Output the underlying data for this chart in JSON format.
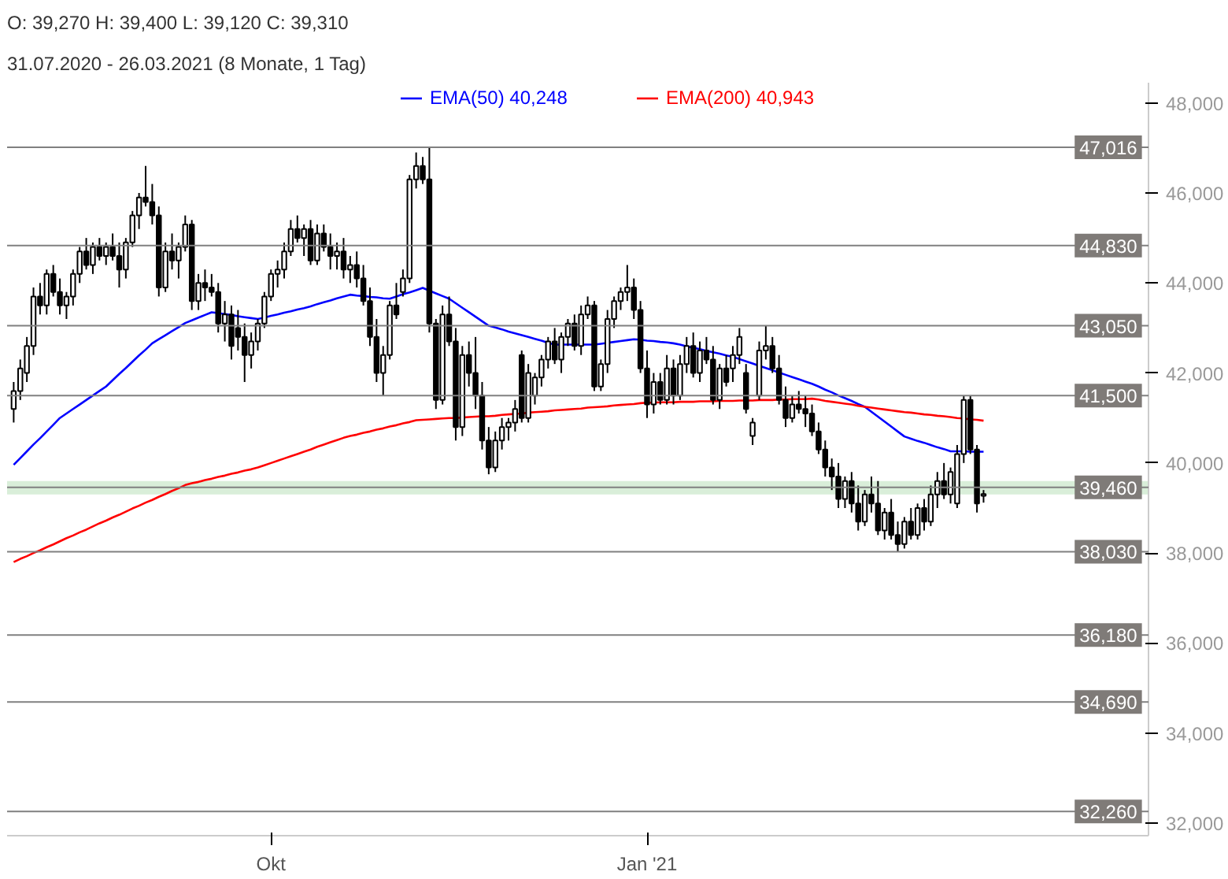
{
  "chart_data": {
    "type": "candlestick",
    "title": "O: 39,270  H: 39,400  L: 39,120  C: 39,310",
    "subtitle": "31.07.2020 - 26.03.2021   (8 Monate, 1 Tag)",
    "categories": [
      null,
      null,
      null,
      null,
      null,
      null,
      null,
      null,
      null,
      null,
      null,
      null,
      null,
      null,
      null,
      null,
      null,
      null,
      null,
      null,
      null,
      null,
      null,
      null,
      null,
      null,
      null,
      null,
      null,
      null,
      null,
      null,
      null,
      null,
      null,
      null,
      null,
      null,
      null,
      "Okt",
      null,
      null,
      null,
      null,
      null,
      null,
      null,
      null,
      null,
      null,
      null,
      null,
      null,
      null,
      null,
      null,
      null,
      null,
      null,
      null,
      null,
      null,
      null,
      null,
      null,
      null,
      null,
      null,
      null,
      null,
      null,
      null,
      null,
      null,
      null,
      null,
      null,
      null,
      null,
      null,
      null,
      null,
      null,
      null,
      null,
      null,
      null,
      null,
      null,
      null,
      null,
      null,
      null,
      null,
      null,
      null,
      "Jan '21",
      null,
      null,
      null,
      null,
      null,
      null,
      null,
      null,
      null,
      null,
      null,
      null,
      null,
      null,
      null,
      null,
      null,
      null,
      null,
      null,
      null,
      null,
      null,
      null,
      null,
      null,
      null,
      null,
      null,
      null,
      null,
      null,
      null,
      null,
      null,
      null,
      null,
      null,
      null,
      null,
      null,
      null,
      null,
      null,
      null,
      null,
      null,
      null,
      null,
      null,
      null
    ],
    "ohlc": [
      [
        41200,
        41800,
        40900,
        41600
      ],
      [
        41600,
        42300,
        41400,
        42100
      ],
      [
        42000,
        42800,
        41800,
        42600
      ],
      [
        42600,
        43900,
        42400,
        43700
      ],
      [
        43700,
        44000,
        43300,
        43500
      ],
      [
        43500,
        44300,
        43300,
        44200
      ],
      [
        44200,
        44400,
        43700,
        43800
      ],
      [
        43800,
        44100,
        43300,
        43500
      ],
      [
        43500,
        43800,
        43200,
        43700
      ],
      [
        43700,
        44300,
        43500,
        44200
      ],
      [
        44200,
        44800,
        44000,
        44700
      ],
      [
        44700,
        45000,
        44300,
        44400
      ],
      [
        44400,
        44900,
        44200,
        44800
      ],
      [
        44800,
        45000,
        44500,
        44600
      ],
      [
        44600,
        44900,
        44400,
        44800
      ],
      [
        44800,
        45100,
        44500,
        44600
      ],
      [
        44600,
        44900,
        43900,
        44300
      ],
      [
        44300,
        45000,
        44100,
        44900
      ],
      [
        44900,
        45600,
        44800,
        45500
      ],
      [
        45500,
        46000,
        45200,
        45900
      ],
      [
        45900,
        46600,
        45700,
        45800
      ],
      [
        45800,
        46200,
        45300,
        45500
      ],
      [
        45500,
        45700,
        43700,
        43900
      ],
      [
        43900,
        44900,
        43800,
        44700
      ],
      [
        44700,
        45100,
        44300,
        44500
      ],
      [
        44500,
        44900,
        44100,
        44800
      ],
      [
        44800,
        45500,
        44700,
        45300
      ],
      [
        45300,
        45400,
        43400,
        43600
      ],
      [
        43600,
        44200,
        43400,
        44000
      ],
      [
        44000,
        44300,
        43600,
        43900
      ],
      [
        43900,
        44200,
        43700,
        43800
      ],
      [
        43800,
        44000,
        42900,
        43100
      ],
      [
        43100,
        43600,
        42700,
        43300
      ],
      [
        43300,
        43500,
        42300,
        42600
      ],
      [
        43000,
        43400,
        42500,
        42800
      ],
      [
        42800,
        43100,
        41800,
        42400
      ],
      [
        42400,
        42900,
        42100,
        42700
      ],
      [
        42700,
        43200,
        42500,
        43100
      ],
      [
        43100,
        43800,
        43000,
        43700
      ],
      [
        43700,
        44300,
        43600,
        44200
      ],
      [
        44200,
        44500,
        43900,
        44300
      ],
      [
        44300,
        44900,
        44100,
        44700
      ],
      [
        44700,
        45400,
        44600,
        45200
      ],
      [
        45200,
        45500,
        44900,
        45000
      ],
      [
        45000,
        45300,
        44600,
        45200
      ],
      [
        45200,
        45400,
        44400,
        44500
      ],
      [
        44500,
        45300,
        44400,
        45100
      ],
      [
        45100,
        45300,
        44700,
        44800
      ],
      [
        44800,
        45100,
        44300,
        44600
      ],
      [
        44600,
        44900,
        44300,
        44700
      ],
      [
        44700,
        45000,
        44100,
        44300
      ],
      [
        44300,
        44600,
        44000,
        44400
      ],
      [
        44400,
        44700,
        43900,
        44100
      ],
      [
        44100,
        44400,
        43500,
        43600
      ],
      [
        43600,
        43900,
        42600,
        42800
      ],
      [
        42800,
        43200,
        41800,
        42000
      ],
      [
        42000,
        42600,
        41500,
        42400
      ],
      [
        42400,
        43600,
        42300,
        43500
      ],
      [
        43500,
        44000,
        43200,
        43300
      ],
      [
        43800,
        44300,
        43700,
        44100
      ],
      [
        44100,
        46400,
        44000,
        46300
      ],
      [
        46300,
        46900,
        46100,
        46600
      ],
      [
        46600,
        46800,
        46200,
        46300
      ],
      [
        46300,
        47016,
        42900,
        43100
      ],
      [
        43100,
        43200,
        41200,
        41400
      ],
      [
        41400,
        43500,
        41300,
        43300
      ],
      [
        43300,
        43700,
        42600,
        42700
      ],
      [
        42700,
        43000,
        40500,
        40800
      ],
      [
        40800,
        42600,
        40600,
        42400
      ],
      [
        42400,
        42700,
        41700,
        42000
      ],
      [
        42000,
        42800,
        41200,
        41500
      ],
      [
        41500,
        41800,
        40300,
        40500
      ],
      [
        40500,
        40800,
        39750,
        39900
      ],
      [
        39900,
        40700,
        39800,
        40500
      ],
      [
        40500,
        41000,
        40300,
        40800
      ],
      [
        40800,
        41000,
        40500,
        40900
      ],
      [
        40900,
        41400,
        40700,
        41200
      ],
      [
        42400,
        42500,
        40900,
        41000
      ],
      [
        41000,
        42200,
        40900,
        42000
      ],
      [
        41500,
        42000,
        41300,
        41900
      ],
      [
        41900,
        42400,
        41700,
        42300
      ],
      [
        42300,
        42800,
        42100,
        42700
      ],
      [
        42700,
        43000,
        42200,
        42300
      ],
      [
        42300,
        42900,
        42000,
        42800
      ],
      [
        42800,
        43200,
        42600,
        43100
      ],
      [
        43100,
        43300,
        42500,
        42600
      ],
      [
        42600,
        43500,
        42400,
        43300
      ],
      [
        43300,
        43700,
        43200,
        43500
      ],
      [
        43500,
        43600,
        41600,
        41700
      ],
      [
        41700,
        42300,
        41600,
        42200
      ],
      [
        42200,
        43400,
        42000,
        43200
      ],
      [
        43200,
        43700,
        43000,
        43600
      ],
      [
        43600,
        43900,
        43400,
        43800
      ],
      [
        43800,
        44400,
        43600,
        43900
      ],
      [
        43900,
        44100,
        43200,
        43400
      ],
      [
        43400,
        43600,
        42000,
        42100
      ],
      [
        42100,
        42500,
        41000,
        41300
      ],
      [
        41300,
        42000,
        41100,
        41800
      ],
      [
        41800,
        42000,
        41300,
        41400
      ],
      [
        41400,
        42400,
        41300,
        42100
      ],
      [
        42100,
        42300,
        41300,
        41500
      ],
      [
        41500,
        42400,
        41400,
        42200
      ],
      [
        42200,
        42800,
        42000,
        42600
      ],
      [
        42600,
        42900,
        41900,
        42000
      ],
      [
        42000,
        42700,
        41800,
        42500
      ],
      [
        42500,
        42800,
        42200,
        42300
      ],
      [
        42300,
        42600,
        41300,
        41400
      ],
      [
        41400,
        42200,
        41200,
        42100
      ],
      [
        42100,
        42400,
        41700,
        41800
      ],
      [
        42100,
        42600,
        41800,
        42400
      ],
      [
        42400,
        43000,
        42200,
        42800
      ],
      [
        42000,
        42200,
        41100,
        41200
      ],
      [
        40600,
        41000,
        40400,
        40900
      ],
      [
        41500,
        42700,
        41400,
        42500
      ],
      [
        42500,
        43050,
        42300,
        42600
      ],
      [
        42600,
        42800,
        42000,
        42100
      ],
      [
        42100,
        42400,
        41300,
        41400
      ],
      [
        41400,
        41700,
        40800,
        41000
      ],
      [
        41000,
        41500,
        40900,
        41300
      ],
      [
        41300,
        41600,
        41100,
        41200
      ],
      [
        41200,
        41500,
        40800,
        41100
      ],
      [
        41100,
        41300,
        40600,
        40700
      ],
      [
        40700,
        40900,
        40200,
        40300
      ],
      [
        40300,
        40500,
        39700,
        39900
      ],
      [
        39900,
        40100,
        39400,
        39700
      ],
      [
        39700,
        40000,
        39000,
        39200
      ],
      [
        39200,
        39700,
        39000,
        39600
      ],
      [
        39600,
        39800,
        38900,
        39100
      ],
      [
        39100,
        39500,
        38500,
        38700
      ],
      [
        38700,
        39400,
        38600,
        39300
      ],
      [
        39300,
        39700,
        38900,
        39100
      ],
      [
        39100,
        39600,
        38400,
        38500
      ],
      [
        38500,
        39000,
        38300,
        38900
      ],
      [
        38900,
        39200,
        38300,
        38400
      ],
      [
        38400,
        38700,
        38030,
        38200
      ],
      [
        38200,
        38800,
        38100,
        38700
      ],
      [
        38700,
        39000,
        38300,
        38400
      ],
      [
        38400,
        39100,
        38300,
        39000
      ],
      [
        39000,
        39200,
        38500,
        38700
      ],
      [
        38700,
        39500,
        38600,
        39300
      ],
      [
        39300,
        39800,
        39000,
        39600
      ],
      [
        39600,
        40000,
        39200,
        39300
      ],
      [
        39300,
        39900,
        39100,
        39800
      ],
      [
        39100,
        40400,
        39000,
        40200
      ],
      [
        40200,
        41500,
        40000,
        41400
      ],
      [
        41400,
        41500,
        40200,
        40300
      ],
      [
        40300,
        40400,
        38900,
        39100
      ],
      [
        39270,
        39400,
        39120,
        39310
      ]
    ],
    "series": [
      {
        "type": "line",
        "name": "EMA(50) 40,248",
        "color": "#0000ff",
        "values": [
          39960,
          40110,
          40260,
          40410,
          40550,
          40700,
          40850,
          41000,
          41100,
          41200,
          41300,
          41400,
          41500,
          41600,
          41700,
          41840,
          41980,
          42110,
          42250,
          42390,
          42520,
          42660,
          42750,
          42840,
          42930,
          43020,
          43110,
          43170,
          43230,
          43290,
          43350,
          43330,
          43310,
          43290,
          43260,
          43240,
          43220,
          43200,
          43230,
          43270,
          43300,
          43340,
          43370,
          43410,
          43440,
          43480,
          43530,
          43570,
          43610,
          43660,
          43700,
          43740,
          43720,
          43710,
          43690,
          43680,
          43660,
          43650,
          43700,
          43750,
          43790,
          43840,
          43890,
          43830,
          43770,
          43710,
          43650,
          43550,
          43450,
          43350,
          43250,
          43150,
          43050,
          43010,
          42970,
          42920,
          42880,
          42840,
          42800,
          42760,
          42720,
          42670,
          42630,
          42630,
          42630,
          42630,
          42630,
          42630,
          42630,
          42650,
          42670,
          42690,
          42710,
          42730,
          42750,
          42740,
          42720,
          42710,
          42690,
          42680,
          42660,
          42630,
          42590,
          42560,
          42530,
          42490,
          42460,
          42430,
          42390,
          42360,
          42310,
          42260,
          42210,
          42160,
          42110,
          42060,
          42010,
          41960,
          41910,
          41860,
          41810,
          41760,
          41700,
          41630,
          41570,
          41500,
          41440,
          41380,
          41310,
          41250,
          41140,
          41030,
          40920,
          40810,
          40700,
          40590,
          40540,
          40490,
          40450,
          40400,
          40350,
          40310,
          40260,
          40260,
          40260,
          40250,
          40250,
          40250
        ]
      },
      {
        "type": "line",
        "name": "EMA(200) 40,943",
        "color": "#ff0000",
        "values": [
          37800,
          37870,
          37930,
          38000,
          38060,
          38130,
          38190,
          38260,
          38330,
          38390,
          38460,
          38520,
          38590,
          38660,
          38720,
          38790,
          38850,
          38920,
          38990,
          39050,
          39120,
          39180,
          39250,
          39310,
          39380,
          39440,
          39510,
          39550,
          39580,
          39620,
          39650,
          39690,
          39720,
          39760,
          39790,
          39830,
          39860,
          39900,
          39950,
          40000,
          40050,
          40100,
          40150,
          40200,
          40250,
          40300,
          40360,
          40410,
          40460,
          40510,
          40560,
          40600,
          40630,
          40670,
          40700,
          40740,
          40770,
          40810,
          40840,
          40880,
          40910,
          40950,
          40960,
          40970,
          40980,
          40990,
          41000,
          41000,
          41010,
          41020,
          41030,
          41040,
          41040,
          41050,
          41070,
          41080,
          41090,
          41100,
          41120,
          41130,
          41140,
          41150,
          41170,
          41180,
          41190,
          41200,
          41210,
          41230,
          41240,
          41250,
          41260,
          41280,
          41290,
          41300,
          41310,
          41330,
          41340,
          41340,
          41350,
          41350,
          41350,
          41360,
          41360,
          41360,
          41370,
          41370,
          41370,
          41380,
          41380,
          41380,
          41390,
          41390,
          41390,
          41400,
          41400,
          41400,
          41410,
          41410,
          41420,
          41420,
          41420,
          41430,
          41410,
          41380,
          41360,
          41340,
          41320,
          41300,
          41270,
          41250,
          41230,
          41210,
          41190,
          41170,
          41150,
          41130,
          41120,
          41100,
          41080,
          41070,
          41050,
          41040,
          41020,
          41000,
          40990,
          40970,
          40960,
          40940
        ]
      }
    ],
    "ylim": [
      31720,
      48450
    ],
    "yticks": [
      {
        "value": 32000,
        "label": "32,000"
      },
      {
        "value": 34000,
        "label": "34,000"
      },
      {
        "value": 36000,
        "label": "36,000"
      },
      {
        "value": 38000,
        "label": "38,000"
      },
      {
        "value": 40000,
        "label": "40,000"
      },
      {
        "value": 42000,
        "label": "42,000"
      },
      {
        "value": 44000,
        "label": "44,000"
      },
      {
        "value": 46000,
        "label": "46,000"
      },
      {
        "value": 48000,
        "label": "48,000"
      }
    ],
    "ref_lines": [
      {
        "axis": "y",
        "value": 47016,
        "label": "47,016",
        "color": "#808080"
      },
      {
        "axis": "y",
        "value": 44830,
        "label": "44,830",
        "color": "#808080"
      },
      {
        "axis": "y",
        "value": 43050,
        "label": "43,050",
        "color": "#808080"
      },
      {
        "axis": "y",
        "value": 41500,
        "label": "41,500",
        "color": "#808080"
      },
      {
        "axis": "y",
        "value": 39460,
        "label": "39,460",
        "color": "#808080"
      },
      {
        "axis": "y",
        "value": 38030,
        "label": "38,030",
        "color": "#808080"
      },
      {
        "axis": "y",
        "value": 36180,
        "label": "36,180",
        "color": "#808080"
      },
      {
        "axis": "y",
        "value": 34690,
        "label": "34,690",
        "color": "#808080"
      },
      {
        "axis": "y",
        "value": 32260,
        "label": "32,260",
        "color": "#808080"
      }
    ],
    "bands": [
      {
        "axis": "y",
        "from": 39300,
        "to": 39600,
        "color": "#d9eed9"
      }
    ],
    "grid": false,
    "legend": "top"
  }
}
